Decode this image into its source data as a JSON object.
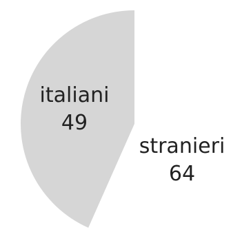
{
  "chart_data": {
    "type": "pie",
    "title": "",
    "slices": [
      {
        "label": "italiani",
        "value": 49,
        "color": "#d6d6d6"
      },
      {
        "label": "stranieri",
        "value": 64,
        "color": "#ffffff"
      }
    ],
    "start": "top",
    "direction": "counterclockwise",
    "legend": "none"
  }
}
